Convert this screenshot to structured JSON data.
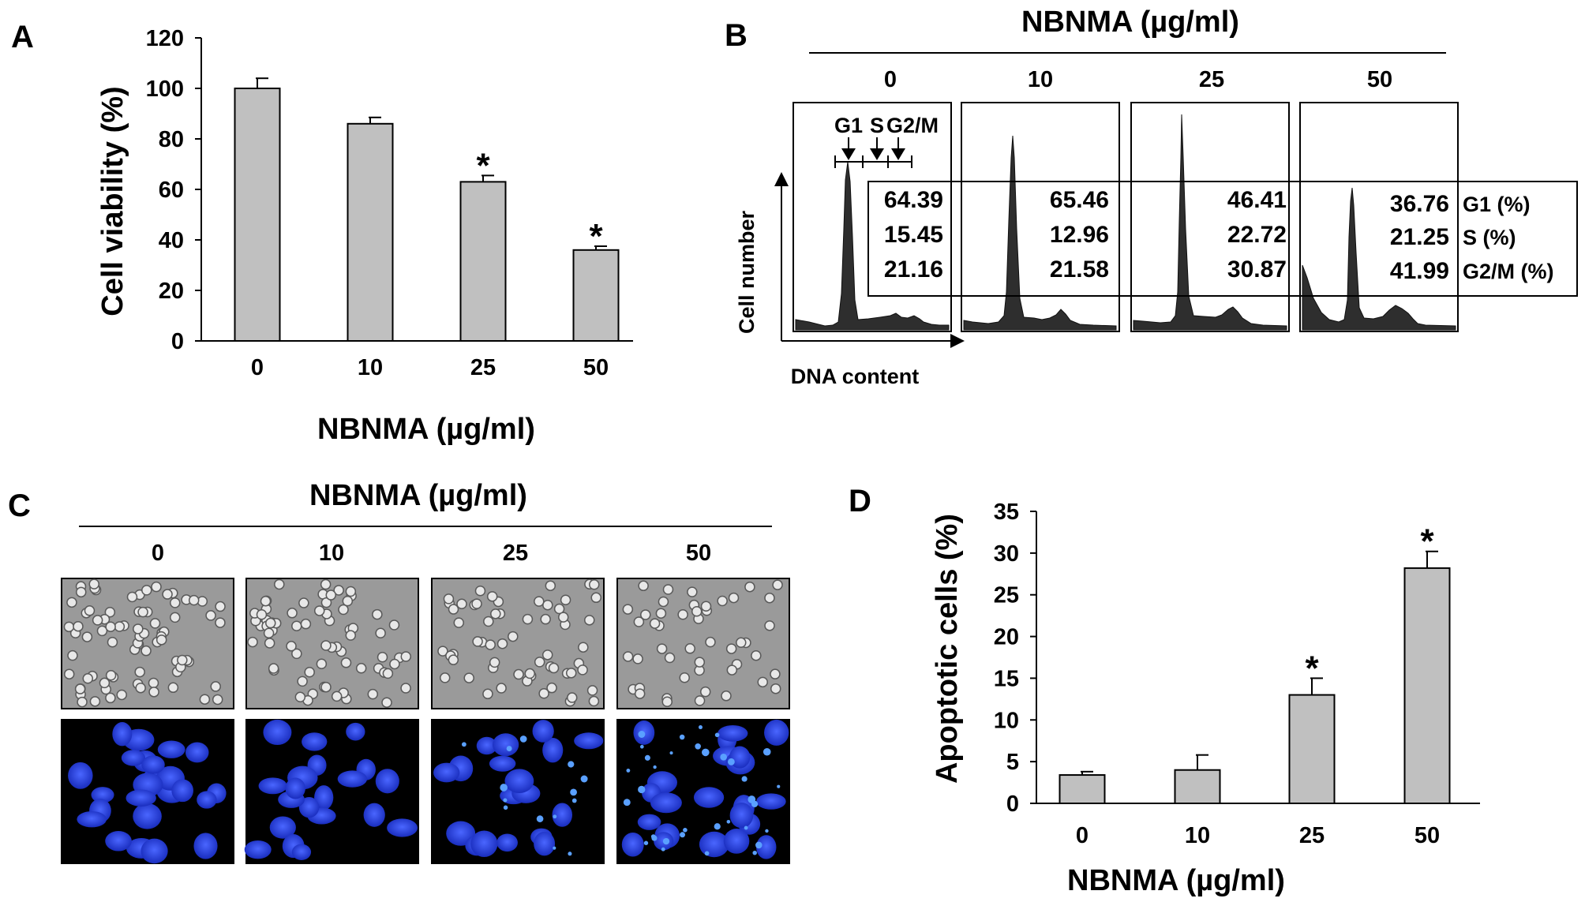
{
  "panels": {
    "a": "A",
    "b": "B",
    "c": "C",
    "d": "D"
  },
  "chart_data": [
    {
      "id": "A",
      "type": "bar",
      "categories": [
        "0",
        "10",
        "25",
        "50"
      ],
      "values": [
        100,
        86,
        63,
        36
      ],
      "errors": [
        4,
        2.5,
        2.5,
        1.5
      ],
      "significant": [
        false,
        false,
        true,
        true
      ],
      "xlabel": "NBNMA  (µg/ml)",
      "ylabel": "Cell viability (%)",
      "ylim": [
        0,
        120
      ],
      "yticks": [
        "0",
        "20",
        "40",
        "60",
        "80",
        "100",
        "120"
      ],
      "bar_color": "#c0c0c0"
    },
    {
      "id": "B",
      "type": "table",
      "title": "NBNMA (µg/ml)",
      "concentrations": [
        "0",
        "10",
        "25",
        "50"
      ],
      "xlabel": "DNA content",
      "ylabel": "Cell number",
      "phase_markers": [
        "G1",
        "S",
        "G2/M"
      ],
      "row_labels": [
        "G1 (%)",
        "S (%)",
        "G2/M (%)"
      ],
      "rows": [
        [
          "64.39",
          "65.46",
          "46.41",
          "36.76"
        ],
        [
          "15.45",
          "12.96",
          "22.72",
          "21.25"
        ],
        [
          "21.16",
          "21.58",
          "30.87",
          "41.99"
        ]
      ]
    },
    {
      "id": "D",
      "type": "bar",
      "categories": [
        "0",
        "10",
        "25",
        "50"
      ],
      "values": [
        3.4,
        4,
        13,
        28.2
      ],
      "errors": [
        0.4,
        1.8,
        2,
        2
      ],
      "significant": [
        false,
        false,
        true,
        true
      ],
      "xlabel": "NBNMA (µg/ml)",
      "ylabel": "Apoptotic cells (%)",
      "ylim": [
        0,
        35
      ],
      "yticks": [
        "0",
        "5",
        "10",
        "15",
        "20",
        "25",
        "30",
        "35"
      ],
      "bar_color": "#c0c0c0"
    }
  ],
  "micrographs": {
    "title": "NBNMA (µg/ml)",
    "concentrations": [
      "0",
      "10",
      "25",
      "50"
    ],
    "colors": {
      "phase": "#9a9a9a",
      "fluorescence": "#000000",
      "nuclei": "#2035d8"
    }
  },
  "significance_marker": "*"
}
